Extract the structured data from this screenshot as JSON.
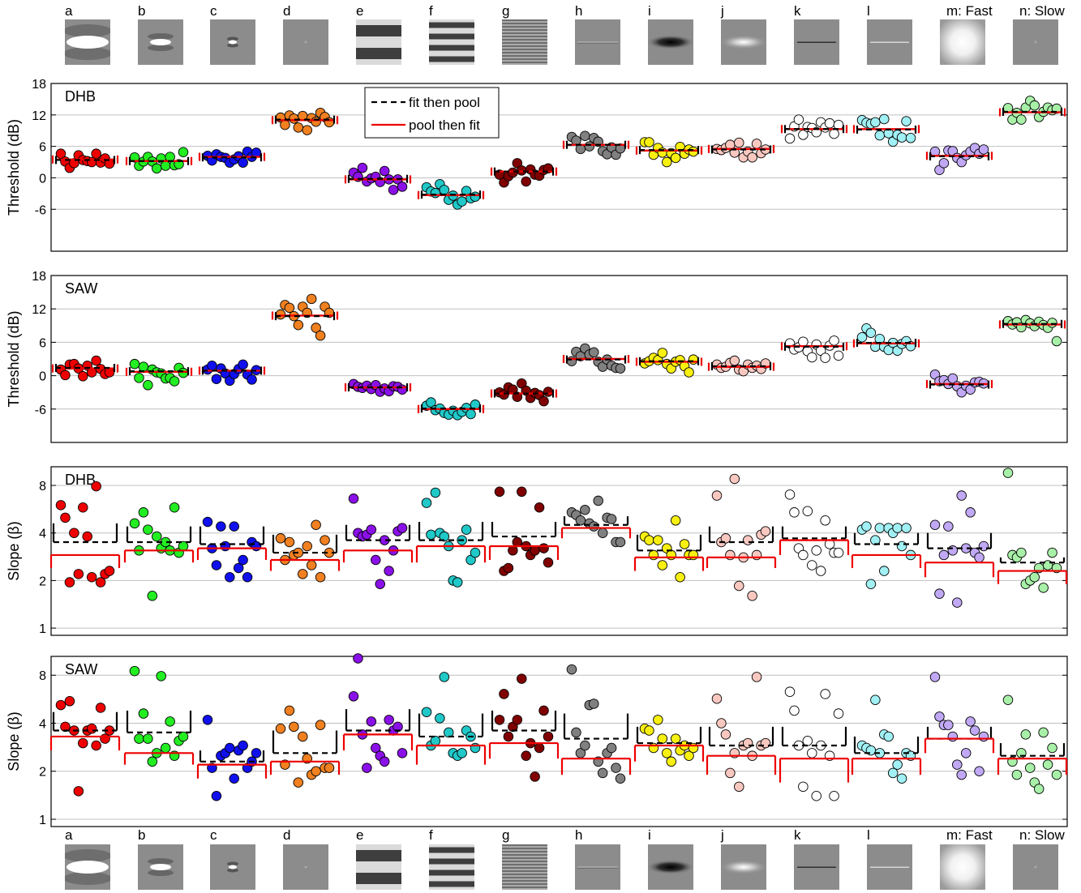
{
  "stimuli": {
    "labels": [
      "a",
      "b",
      "c",
      "d",
      "e",
      "f",
      "g",
      "h",
      "i",
      "j",
      "k",
      "l",
      "m: Fast",
      "n: Slow"
    ],
    "icons": [
      "gabor-horizontal-large",
      "gabor-horizontal-medium",
      "gabor-small",
      "tiny-spot",
      "grating-horizontal-low",
      "grating-horizontal-mid",
      "grating-horizontal-high",
      "thin-line",
      "dark-horizontal-blob",
      "bright-horizontal-blob",
      "dark-thin-line",
      "bright-thin-line",
      "gaussian-blob",
      "tiny-spot"
    ]
  },
  "legend": {
    "fit_then_pool": "fit then pool",
    "pool_then_fit": "pool then fit"
  },
  "colors": {
    "series": [
      "#ee0000",
      "#22ee22",
      "#1010ee",
      "#f08020",
      "#8a10e8",
      "#20c8c8",
      "#800000",
      "#808080",
      "#f8f010",
      "#f8c8c0",
      "#ffffff",
      "#a0f0f4",
      "#c0a8f4",
      "#a8f0a8"
    ],
    "fit_then_pool": "#000000",
    "pool_then_fit": "#ee0000",
    "grid": "#c0c0c0"
  },
  "chart_data": [
    {
      "type": "scatter",
      "panel": "DHB",
      "ylabel": "Threshold (dB)",
      "ylim": [
        -14,
        18
      ],
      "yticks": [
        -6,
        0,
        6,
        12,
        18
      ],
      "ytick_labels": [
        "-6",
        "0",
        "6",
        "12",
        "18"
      ],
      "grid": true,
      "legend_position": "top-center",
      "categories": [
        "a",
        "b",
        "c",
        "d",
        "e",
        "f",
        "g",
        "h",
        "i",
        "j",
        "k",
        "l",
        "m",
        "n"
      ],
      "pool_then_fit": [
        3.5,
        3.2,
        4.0,
        11.0,
        -0.3,
        -3.3,
        1.2,
        6.3,
        5.2,
        5.5,
        9.3,
        9.3,
        4.2,
        12.5
      ],
      "fit_then_pool": [
        3.4,
        3.2,
        3.9,
        11.1,
        -0.2,
        -3.2,
        1.2,
        6.3,
        5.3,
        5.4,
        9.3,
        9.2,
        4.1,
        12.6
      ],
      "points": [
        [
          4.6,
          3.1,
          1.9,
          2.8,
          4.3,
          3.4,
          3.2,
          3.0,
          4.6,
          2.9,
          3.7,
          2.7
        ],
        [
          3.9,
          2.3,
          3.1,
          4.0,
          3.1,
          1.8,
          3.7,
          2.3,
          4.0,
          2.4,
          2.6,
          4.9
        ],
        [
          4.2,
          3.3,
          4.5,
          4.0,
          3.8,
          2.9,
          3.5,
          4.1,
          2.9,
          5.0,
          4.0,
          4.8
        ],
        [
          11.5,
          10.1,
          11.9,
          11.3,
          9.6,
          11.8,
          9.1,
          11.4,
          10.7,
          12.4,
          11.6,
          10.6
        ],
        [
          1.0,
          0.2,
          1.9,
          -0.7,
          -0.1,
          0.2,
          -0.8,
          1.3,
          -0.3,
          -2.3,
          -0.3,
          -1.7
        ],
        [
          -1.8,
          -2.6,
          -2.9,
          -1.2,
          -2.3,
          -4.2,
          -3.4,
          -5.1,
          -4.5,
          -2.5,
          -3.9,
          -3.6
        ],
        [
          0.6,
          -0.9,
          0.3,
          1.0,
          2.8,
          1.4,
          -0.7,
          1.6,
          0.6,
          0.4,
          1.5,
          1.8
        ],
        [
          7.8,
          7.1,
          5.5,
          8.0,
          6.0,
          7.6,
          6.9,
          5.1,
          4.5,
          5.8,
          4.4,
          5.6
        ],
        [
          6.8,
          6.8,
          4.4,
          5.7,
          4.8,
          3.0,
          4.7,
          3.8,
          5.9,
          4.6,
          5.4,
          5.0
        ],
        [
          5.5,
          5.3,
          5.7,
          6.3,
          4.8,
          6.7,
          3.9,
          5.0,
          3.9,
          6.5,
          4.7,
          5.4
        ],
        [
          7.5,
          9.8,
          11.1,
          8.2,
          9.7,
          9.5,
          8.7,
          10.6,
          9.6,
          10.4,
          8.4,
          10.1
        ],
        [
          11.0,
          10.5,
          10.3,
          10.6,
          8.1,
          11.2,
          8.5,
          6.9,
          8.2,
          7.7,
          10.8,
          7.6
        ],
        [
          5.0,
          1.5,
          2.8,
          5.2,
          5.1,
          3.8,
          3.0,
          4.3,
          5.0,
          5.7,
          4.6,
          5.4
        ],
        [
          13.3,
          11.1,
          12.4,
          11.1,
          13.4,
          14.7,
          13.8,
          11.6,
          12.6,
          13.4,
          12.9,
          13.2
        ]
      ]
    },
    {
      "type": "scatter",
      "panel": "SAW",
      "ylabel": "Threshold (dB)",
      "ylim": [
        -12,
        18
      ],
      "yticks": [
        -6,
        0,
        6,
        12,
        18
      ],
      "ytick_labels": [
        "-6",
        "0",
        "6",
        "12",
        "18"
      ],
      "grid": true,
      "categories": [
        "a",
        "b",
        "c",
        "d",
        "e",
        "f",
        "g",
        "h",
        "i",
        "j",
        "k",
        "l",
        "m",
        "n"
      ],
      "pool_then_fit": [
        1.3,
        0.7,
        0.9,
        10.8,
        -2.1,
        -6.0,
        -3.2,
        3.0,
        2.5,
        1.6,
        5.3,
        5.8,
        -1.5,
        9.2
      ],
      "fit_then_pool": [
        1.4,
        0.8,
        0.9,
        10.7,
        -2.1,
        -5.9,
        -3.2,
        2.9,
        2.6,
        1.7,
        5.2,
        5.9,
        -1.6,
        9.3
      ],
      "points": [
        [
          1.1,
          0.1,
          2.0,
          2.1,
          1.3,
          -0.1,
          1.8,
          0.6,
          2.7,
          1.2,
          0.3,
          0.6
        ],
        [
          2.1,
          -0.4,
          1.6,
          -1.7,
          1.1,
          0.6,
          0.4,
          -0.5,
          -0.4,
          -1.0,
          1.4,
          0.5
        ],
        [
          1.1,
          1.8,
          -0.6,
          1.3,
          0.4,
          -0.9,
          0.3,
          1.2,
          2.0,
          0.2,
          -0.7,
          1.0
        ],
        [
          11.0,
          12.7,
          12.2,
          10.7,
          9.1,
          12.4,
          11.3,
          13.8,
          8.6,
          7.2,
          12.4,
          11.3
        ],
        [
          -1.5,
          -2.0,
          -2.2,
          -1.8,
          -2.4,
          -1.7,
          -2.9,
          -2.3,
          -2.8,
          -1.9,
          -2.0,
          -2.5
        ],
        [
          -5.4,
          -4.8,
          -6.2,
          -5.9,
          -6.7,
          -7.0,
          -6.3,
          -7.1,
          -6.5,
          -5.8,
          -6.9,
          -5.2
        ],
        [
          -3.0,
          -3.4,
          -2.1,
          -2.5,
          -3.8,
          -1.4,
          -2.7,
          -4.0,
          -3.1,
          -3.5,
          -4.6,
          -2.9
        ],
        [
          2.6,
          4.3,
          3.5,
          4.9,
          3.8,
          4.2,
          2.5,
          1.6,
          2.9,
          1.8,
          1.4,
          1.3
        ],
        [
          2.2,
          2.6,
          3.2,
          2.8,
          4.1,
          2.1,
          1.3,
          2.5,
          2.8,
          1.7,
          0.6,
          2.9
        ],
        [
          2.0,
          1.4,
          1.6,
          2.3,
          2.7,
          1.1,
          0.8,
          2.0,
          1.4,
          1.8,
          1.2,
          2.2
        ],
        [
          5.8,
          4.7,
          5.1,
          6.1,
          4.4,
          3.3,
          5.6,
          4.5,
          3.2,
          5.4,
          6.3,
          3.6
        ],
        [
          6.9,
          8.5,
          7.7,
          5.2,
          6.6,
          5.2,
          4.6,
          5.9,
          4.5,
          5.7,
          6.2,
          5.3
        ],
        [
          0.2,
          -1.0,
          -0.8,
          -1.5,
          -0.5,
          -1.9,
          -3.0,
          -1.8,
          -2.5,
          -1.2,
          -1.1,
          -1.4
        ],
        [
          9.8,
          9.2,
          9.6,
          8.7,
          10.0,
          9.4,
          8.9,
          9.7,
          9.1,
          8.6,
          9.5,
          6.2
        ]
      ]
    },
    {
      "type": "scatter",
      "panel": "DHB",
      "ylabel": "Slope (β)",
      "y_scale": "log2",
      "ylim": [
        0.9,
        10.5
      ],
      "yticks": [
        1,
        2,
        4,
        8
      ],
      "ytick_labels": [
        "1",
        "2",
        "4",
        "8"
      ],
      "grid": true,
      "categories": [
        "a",
        "b",
        "c",
        "d",
        "e",
        "f",
        "g",
        "h",
        "i",
        "j",
        "k",
        "l",
        "m",
        "n"
      ],
      "pool_then_fit": [
        2.9,
        3.1,
        3.2,
        2.7,
        3.1,
        3.3,
        3.3,
        4.3,
        2.8,
        2.8,
        3.6,
        2.9,
        2.6,
        2.3
      ],
      "fit_then_pool": [
        3.5,
        3.5,
        3.4,
        3.0,
        3.6,
        3.6,
        3.8,
        4.5,
        3.1,
        3.5,
        3.7,
        3.4,
        3.2,
        2.6
      ],
      "limits": [
        [
          2.4,
          4.6
        ],
        [
          2.6,
          4.4
        ],
        [
          2.7,
          4.4
        ],
        [
          2.3,
          3.9
        ],
        [
          2.6,
          4.5
        ],
        [
          2.6,
          4.7
        ],
        [
          2.7,
          4.7
        ],
        [
          3.7,
          5.1
        ],
        [
          2.3,
          3.9
        ],
        [
          2.4,
          4.4
        ],
        [
          2.9,
          4.4
        ],
        [
          2.4,
          4.0
        ],
        [
          2.1,
          4.0
        ],
        [
          1.9,
          2.8
        ]
      ],
      "points": [
        [
          6.0,
          5.0,
          1.95,
          4.0,
          2.2,
          5.8,
          3.8,
          2.1,
          7.9,
          1.95,
          2.2,
          2.3
        ],
        [
          4.6,
          3.1,
          5.4,
          4.2,
          1.6,
          3.8,
          3.2,
          3.5,
          3.1,
          5.8,
          3.0,
          3.3
        ],
        [
          4.7,
          3.2,
          2.5,
          4.4,
          3.3,
          2.1,
          4.4,
          2.4,
          2.7,
          2.1,
          3.5,
          3.3
        ],
        [
          3.7,
          2.7,
          3.5,
          2.9,
          3.0,
          2.2,
          3.3,
          2.5,
          4.5,
          2.1,
          3.6,
          3.0
        ],
        [
          6.6,
          4.0,
          3.8,
          3.9,
          4.2,
          2.7,
          1.9,
          3.6,
          2.3,
          3.1,
          4.1,
          4.3
        ],
        [
          6.2,
          3.9,
          7.2,
          4.0,
          3.8,
          3.3,
          2.0,
          1.95,
          3.6,
          4.2,
          2.7,
          3.0
        ],
        [
          7.3,
          2.3,
          2.4,
          3.1,
          3.5,
          7.3,
          3.3,
          2.9,
          3.1,
          5.8,
          3.2,
          2.6
        ],
        [
          5.4,
          5.2,
          4.8,
          5.6,
          4.6,
          4.4,
          6.4,
          4.0,
          5.0,
          4.9,
          3.5,
          3.5
        ],
        [
          3.8,
          3.6,
          2.9,
          3.6,
          2.5,
          3.2,
          2.9,
          4.8,
          2.1,
          3.4,
          2.9,
          2.9
        ],
        [
          6.9,
          3.5,
          3.7,
          2.9,
          8.8,
          1.85,
          2.8,
          3.6,
          1.6,
          2.9,
          3.9,
          4.1
        ],
        [
          7.0,
          5.4,
          3.2,
          2.9,
          5.5,
          2.5,
          3.1,
          2.3,
          4.8,
          3.4,
          3.0,
          3.0
        ],
        [
          4.2,
          4.4,
          1.9,
          3.6,
          4.3,
          2.3,
          4.3,
          4.0,
          4.3,
          3.3,
          4.3,
          2.9
        ],
        [
          4.5,
          1.65,
          2.9,
          4.4,
          3.1,
          1.45,
          6.9,
          3.2,
          5.4,
          3.0,
          2.8,
          3.3
        ],
        [
          9.6,
          2.9,
          2.8,
          3.0,
          1.9,
          2.0,
          2.1,
          2.4,
          1.8,
          2.5,
          3.0,
          2.4
        ]
      ]
    },
    {
      "type": "scatter",
      "panel": "SAW",
      "ylabel": "Slope (β)",
      "y_scale": "log2",
      "ylim": [
        0.9,
        10.5
      ],
      "yticks": [
        1,
        2,
        4,
        8
      ],
      "ytick_labels": [
        "1",
        "2",
        "4",
        "8"
      ],
      "grid": true,
      "categories": [
        "a",
        "b",
        "c",
        "d",
        "e",
        "f",
        "g",
        "h",
        "i",
        "j",
        "k",
        "l",
        "m",
        "n"
      ],
      "pool_then_fit": [
        3.3,
        2.6,
        2.2,
        2.3,
        3.4,
        2.9,
        3.0,
        2.4,
        2.9,
        2.5,
        2.4,
        2.4,
        3.2,
        2.4
      ],
      "fit_then_pool": [
        3.6,
        3.5,
        2.3,
        2.6,
        3.6,
        3.3,
        3.6,
        3.2,
        3.0,
        2.9,
        2.9,
        2.6,
        3.2,
        2.5
      ],
      "limits": [
        [
          2.7,
          4.7
        ],
        [
          2.2,
          4.8
        ],
        [
          1.8,
          2.7
        ],
        [
          1.9,
          3.6
        ],
        [
          2.7,
          4.9
        ],
        [
          2.2,
          4.6
        ],
        [
          2.4,
          4.8
        ],
        [
          1.9,
          4.6
        ],
        [
          2.3,
          3.8
        ],
        [
          1.9,
          3.8
        ],
        [
          1.7,
          3.8
        ],
        [
          1.9,
          3.3
        ],
        [
          2.6,
          3.8
        ],
        [
          1.9,
          3.0
        ]
      ],
      "points": [
        [
          5.2,
          3.8,
          5.5,
          3.6,
          1.5,
          3.0,
          3.6,
          3.7,
          2.9,
          5.0,
          3.2,
          3.6
        ],
        [
          8.5,
          3.2,
          4.6,
          3.2,
          2.3,
          2.6,
          7.9,
          2.8,
          4.1,
          2.5,
          3.1,
          3.3
        ],
        [
          4.2,
          2.1,
          1.4,
          2.5,
          2.6,
          2.8,
          1.8,
          2.7,
          2.9,
          2.1,
          2.3,
          2.6
        ],
        [
          3.7,
          2.2,
          4.8,
          3.8,
          1.7,
          3.3,
          2.4,
          1.9,
          2.0,
          3.9,
          2.1,
          2.1
        ],
        [
          5.9,
          10.2,
          3.4,
          2.1,
          4.1,
          2.8,
          2.5,
          2.3,
          4.2,
          3.6,
          3.8,
          2.6
        ],
        [
          4.7,
          2.9,
          3.1,
          4.3,
          7.8,
          3.5,
          2.6,
          2.5,
          2.6,
          3.6,
          3.3,
          2.8
        ],
        [
          4.2,
          6.1,
          3.3,
          3.8,
          4.2,
          7.6,
          2.5,
          3.0,
          1.85,
          2.8,
          4.8,
          3.3
        ],
        [
          8.7,
          3.5,
          2.6,
          2.9,
          5.2,
          5.3,
          2.3,
          1.95,
          2.6,
          2.8,
          2.1,
          1.8
        ],
        [
          3.7,
          3.6,
          2.8,
          4.2,
          3.2,
          2.6,
          2.3,
          3.2,
          2.7,
          2.9,
          2.5,
          2.8
        ],
        [
          5.7,
          4.0,
          3.4,
          1.95,
          2.6,
          1.6,
          2.9,
          3.0,
          2.5,
          7.8,
          2.9,
          3.0
        ],
        [
          6.3,
          4.8,
          2.9,
          1.6,
          3.1,
          2.6,
          1.4,
          2.9,
          6.1,
          2.5,
          1.4,
          4.6
        ],
        [
          2.9,
          2.8,
          2.7,
          5.6,
          2.6,
          3.4,
          3.3,
          1.95,
          2.2,
          1.8,
          2.6,
          2.5
        ],
        [
          7.8,
          4.4,
          3.9,
          3.9,
          3.3,
          2.2,
          1.9,
          2.6,
          4.1,
          3.6,
          2.0,
          3.3
        ],
        [
          5.6,
          2.3,
          1.9,
          2.6,
          3.4,
          2.1,
          1.7,
          1.55,
          3.5,
          2.2,
          2.8,
          1.9
        ]
      ]
    }
  ]
}
